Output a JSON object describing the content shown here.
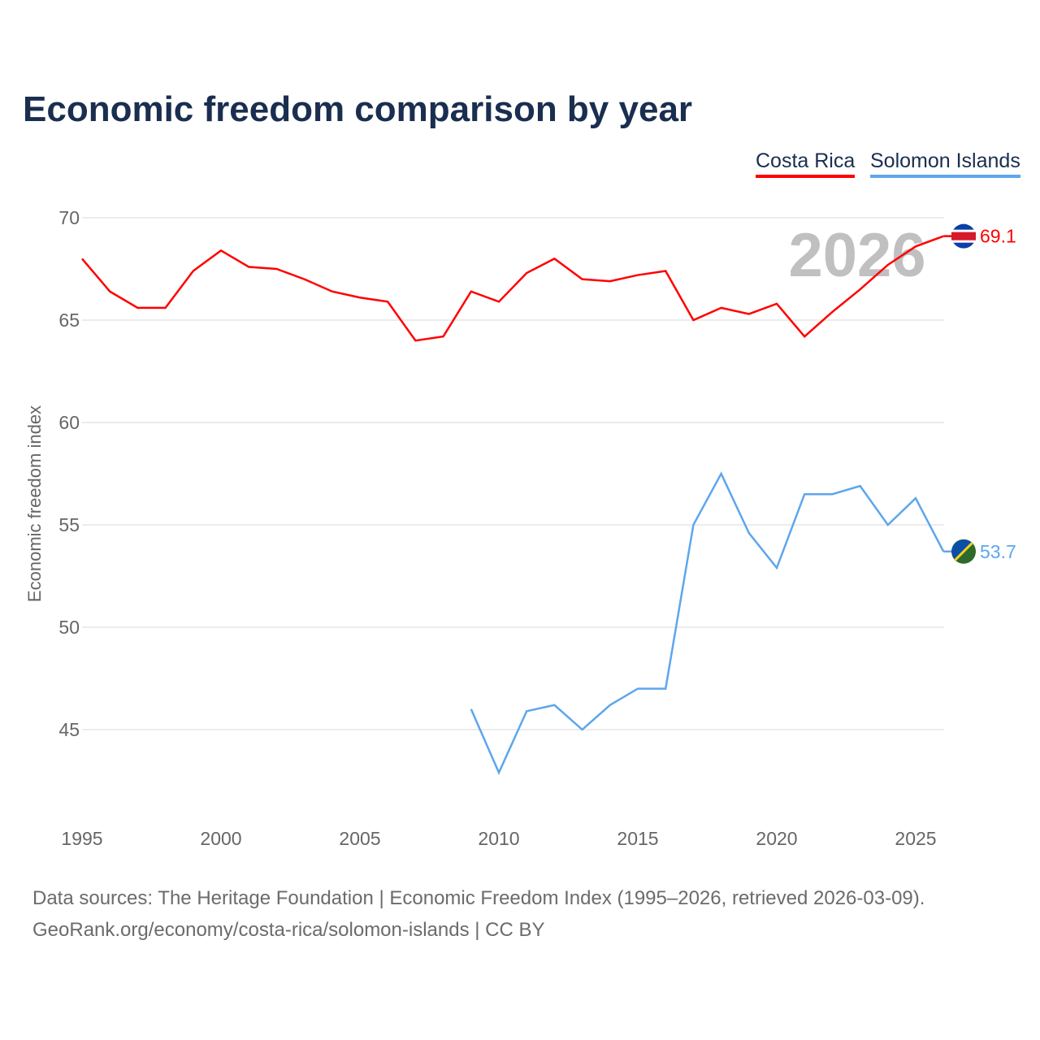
{
  "chart_data": {
    "type": "line",
    "title": "Economic freedom comparison by year",
    "ylabel": "Economic freedom index",
    "xlabel": "",
    "xlim": [
      1995,
      2026
    ],
    "ylim": [
      41,
      71.5
    ],
    "yticks": [
      45,
      50,
      55,
      60,
      65,
      70
    ],
    "xticks": [
      1995,
      2000,
      2005,
      2010,
      2015,
      2020,
      2025
    ],
    "grid": true,
    "legend_position": "top-right",
    "year_watermark": "2026",
    "series": [
      {
        "name": "Costa Rica",
        "color": "#ff0000",
        "end_label": "69.1",
        "x": [
          1995,
          1996,
          1997,
          1998,
          1999,
          2000,
          2001,
          2002,
          2003,
          2004,
          2005,
          2006,
          2007,
          2008,
          2009,
          2010,
          2011,
          2012,
          2013,
          2014,
          2015,
          2016,
          2017,
          2018,
          2019,
          2020,
          2021,
          2022,
          2023,
          2024,
          2025,
          2026
        ],
        "values": [
          68.0,
          66.4,
          65.6,
          65.6,
          67.4,
          68.4,
          67.6,
          67.5,
          67.0,
          66.4,
          66.1,
          65.9,
          64.0,
          64.2,
          66.4,
          65.9,
          67.3,
          68.0,
          67.0,
          66.9,
          67.2,
          67.4,
          65.0,
          65.6,
          65.3,
          65.8,
          64.2,
          65.4,
          66.5,
          67.7,
          68.6,
          69.1
        ]
      },
      {
        "name": "Solomon Islands",
        "color": "#5ea6ec",
        "end_label": "53.7",
        "x": [
          2009,
          2010,
          2011,
          2012,
          2013,
          2014,
          2015,
          2016,
          2017,
          2018,
          2019,
          2020,
          2021,
          2022,
          2023,
          2024,
          2025,
          2026
        ],
        "values": [
          46.0,
          42.9,
          45.9,
          46.2,
          45.0,
          46.2,
          47.0,
          47.0,
          55.0,
          57.5,
          54.6,
          52.9,
          56.5,
          56.5,
          56.9,
          55.0,
          56.3,
          53.7
        ]
      }
    ]
  },
  "footer": {
    "line1": "Data sources: The Heritage Foundation | Economic Freedom Index (1995–2026, retrieved 2026-03-09).",
    "line2": "GeoRank.org/economy/costa-rica/solomon-islands | CC BY"
  }
}
